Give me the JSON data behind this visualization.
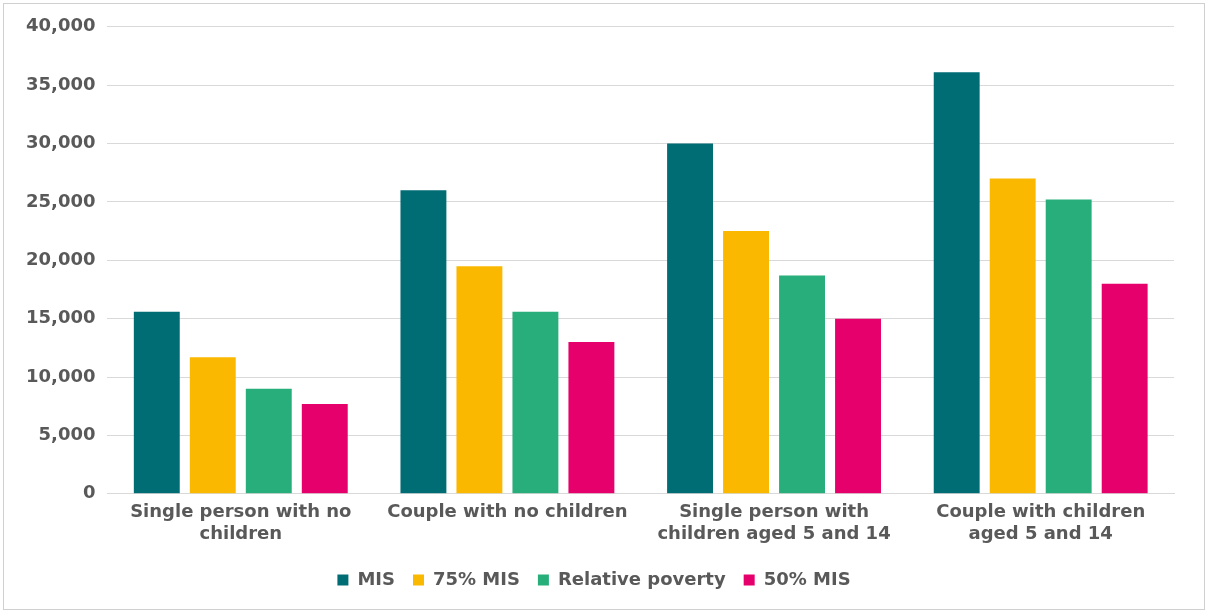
{
  "chart_data": {
    "type": "bar",
    "categories": [
      "Single person with no children",
      "Couple with no children",
      "Single person with children aged 5 and 14",
      "Couple with children aged 5 and 14"
    ],
    "series": [
      {
        "name": "MIS",
        "color": "#006d75",
        "values": [
          15600,
          26000,
          30000,
          36100
        ]
      },
      {
        "name": "75% MIS",
        "color": "#fbb800",
        "values": [
          11700,
          19500,
          22500,
          27000
        ]
      },
      {
        "name": "Relative poverty",
        "color": "#27ae7a",
        "values": [
          9000,
          15600,
          18700,
          25200
        ]
      },
      {
        "name": "50% MIS",
        "color": "#e5006b",
        "values": [
          7700,
          13000,
          15000,
          18000
        ]
      }
    ],
    "ylim": [
      0,
      40000
    ],
    "yticks": [
      0,
      {
        "value": 5000,
        "label": "5,000"
      },
      {
        "value": 10000,
        "label": "10,000"
      },
      {
        "value": 15000,
        "label": "15,000"
      },
      {
        "value": 20000,
        "label": "20,000"
      },
      {
        "value": 25000,
        "label": "25,000"
      },
      {
        "value": 30000,
        "label": "30,000"
      },
      {
        "value": 35000,
        "label": "35,000"
      },
      {
        "value": 40000,
        "label": "40,000"
      }
    ],
    "grid": "y",
    "legend": "bottom"
  }
}
